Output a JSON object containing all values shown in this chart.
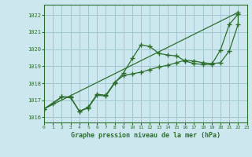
{
  "xlabel": "Graphe pression niveau de la mer (hPa)",
  "bg_color": "#cce8ee",
  "grid_color": "#a0c8d0",
  "line_color": "#2d6e2d",
  "x_values": [
    0,
    1,
    2,
    3,
    4,
    5,
    6,
    7,
    8,
    9,
    10,
    11,
    12,
    13,
    14,
    15,
    16,
    17,
    18,
    19,
    20,
    21,
    22,
    23
  ],
  "line1_y": [
    1016.5,
    1016.8,
    1017.2,
    1017.2,
    1016.35,
    1016.55,
    1017.3,
    1017.25,
    1018.0,
    1018.6,
    1019.45,
    1020.25,
    1020.15,
    1019.75,
    1019.65,
    1019.6,
    1019.3,
    1019.15,
    1019.1,
    1019.1,
    1019.95,
    1021.45,
    1022.05,
    null
  ],
  "line2_y": [
    1016.5,
    1022.15
  ],
  "line2_x": [
    0,
    22
  ],
  "line3_y": [
    1016.5,
    1017.2,
    1017.15,
    1016.35,
    1016.6,
    1017.35,
    1017.3,
    1018.05,
    1018.45,
    1018.55,
    1018.65,
    1018.8,
    1018.95,
    1019.05,
    1019.2,
    1019.35,
    1019.3,
    1019.2,
    1019.15,
    1019.2,
    1019.9,
    1021.45,
    1022.15
  ],
  "line3_x": [
    0,
    2,
    3,
    4,
    5,
    6,
    7,
    8,
    9,
    10,
    11,
    12,
    13,
    14,
    15,
    16,
    17,
    18,
    19,
    20,
    21,
    22,
    22
  ],
  "ylim": [
    1015.7,
    1022.6
  ],
  "yticks": [
    1016,
    1017,
    1018,
    1019,
    1020,
    1021,
    1022
  ],
  "xlim": [
    0,
    23
  ],
  "xticks": [
    0,
    1,
    2,
    3,
    4,
    5,
    6,
    7,
    8,
    9,
    10,
    11,
    12,
    13,
    14,
    15,
    16,
    17,
    18,
    19,
    20,
    21,
    22,
    23
  ]
}
